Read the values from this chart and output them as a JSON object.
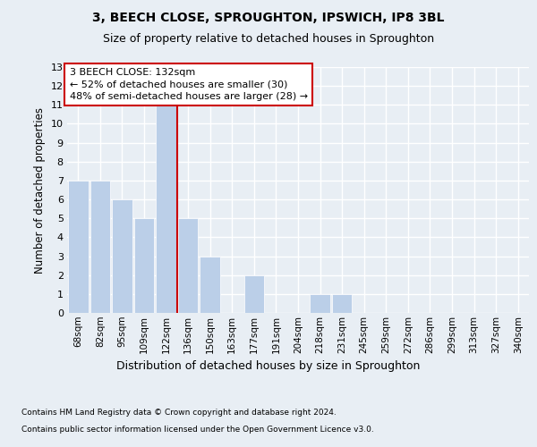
{
  "title1": "3, BEECH CLOSE, SPROUGHTON, IPSWICH, IP8 3BL",
  "title2": "Size of property relative to detached houses in Sproughton",
  "xlabel": "Distribution of detached houses by size in Sproughton",
  "ylabel": "Number of detached properties",
  "categories": [
    "68sqm",
    "82sqm",
    "95sqm",
    "109sqm",
    "122sqm",
    "136sqm",
    "150sqm",
    "163sqm",
    "177sqm",
    "191sqm",
    "204sqm",
    "218sqm",
    "231sqm",
    "245sqm",
    "259sqm",
    "272sqm",
    "286sqm",
    "299sqm",
    "313sqm",
    "327sqm",
    "340sqm"
  ],
  "values": [
    7,
    7,
    6,
    5,
    11,
    5,
    3,
    0,
    2,
    0,
    0,
    1,
    1,
    0,
    0,
    0,
    0,
    0,
    0,
    0,
    0
  ],
  "bar_color": "#BBCFE8",
  "bar_edge_color": "#ffffff",
  "background_color": "#E8EEF4",
  "grid_color": "#ffffff",
  "vline_color": "#cc0000",
  "annotation_text": "3 BEECH CLOSE: 132sqm\n← 52% of detached houses are smaller (30)\n48% of semi-detached houses are larger (28) →",
  "annotation_box_color": "#ffffff",
  "annotation_box_edge_color": "#cc0000",
  "ylim": [
    0,
    13
  ],
  "yticks": [
    0,
    1,
    2,
    3,
    4,
    5,
    6,
    7,
    8,
    9,
    10,
    11,
    12,
    13
  ],
  "footnote1": "Contains HM Land Registry data © Crown copyright and database right 2024.",
  "footnote2": "Contains public sector information licensed under the Open Government Licence v3.0."
}
